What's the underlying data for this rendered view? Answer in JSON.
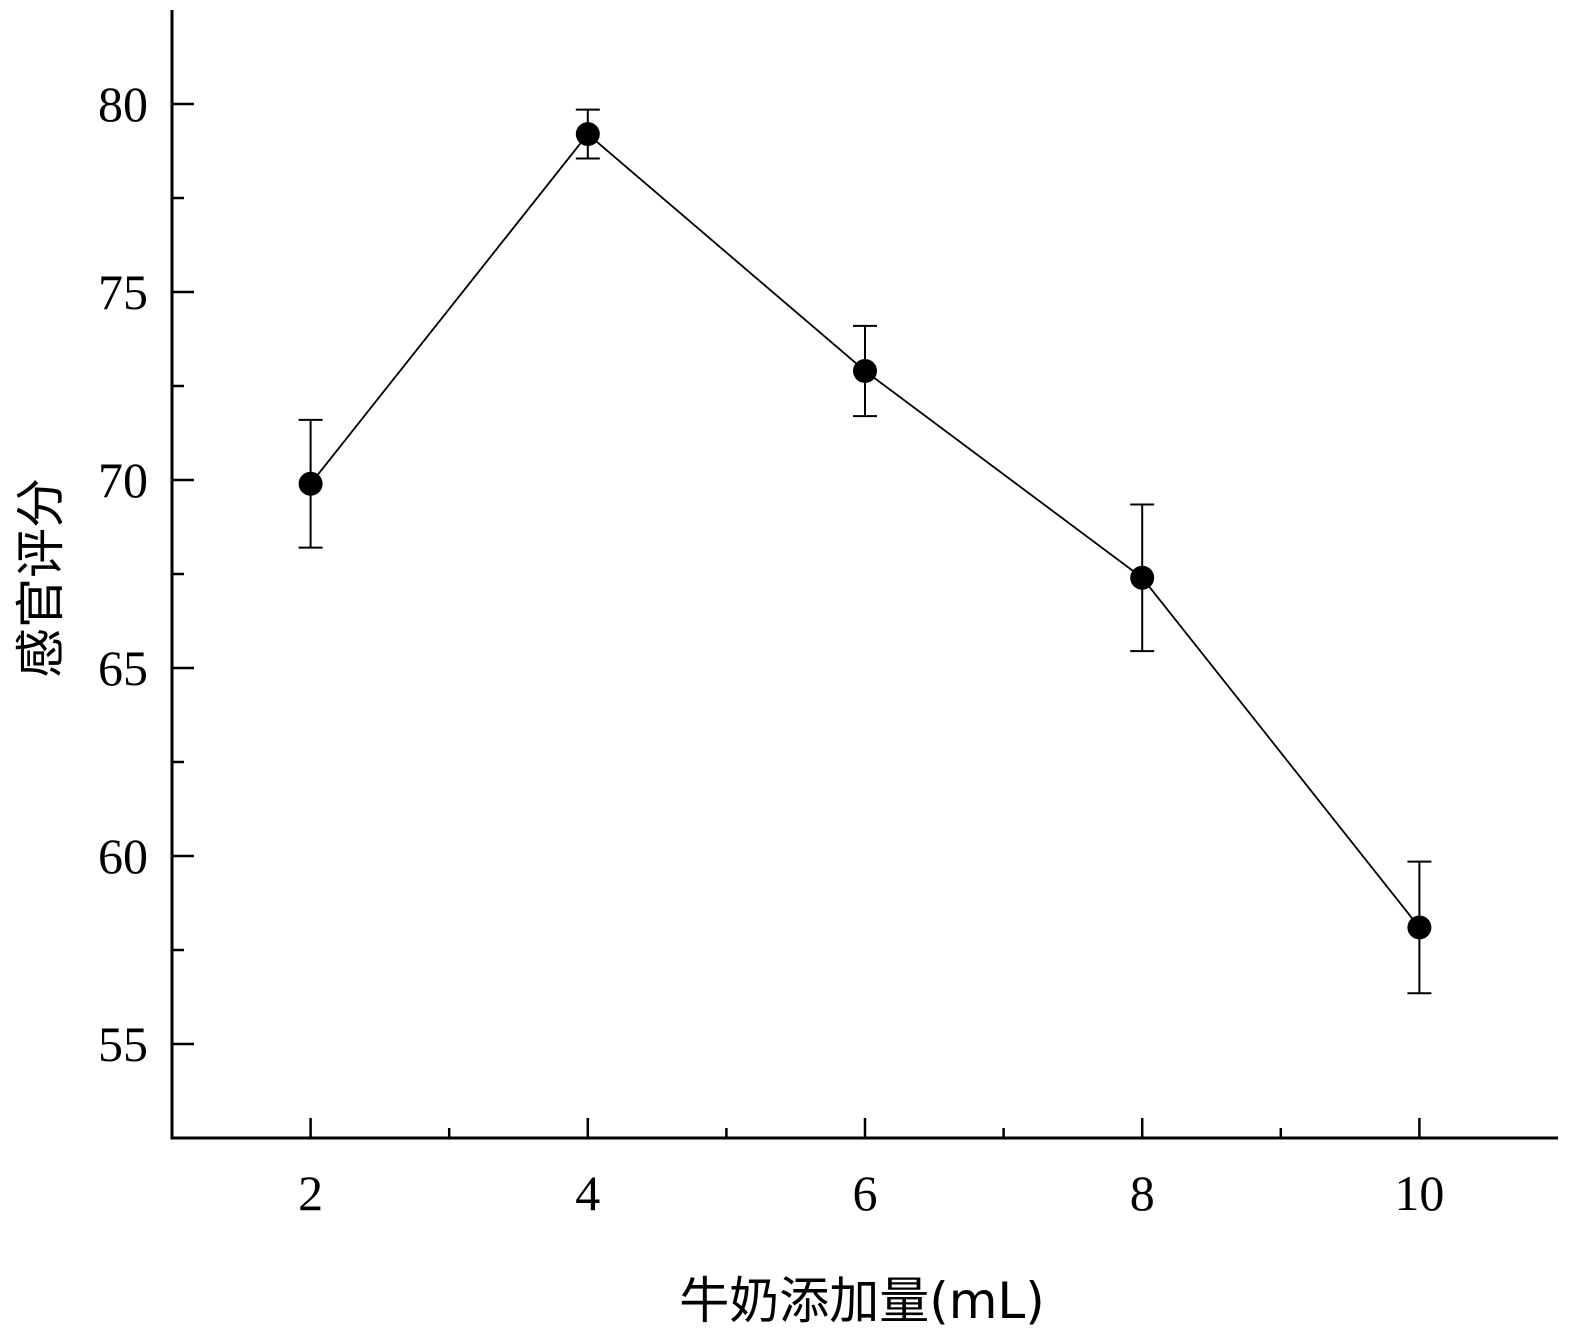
{
  "chart_data": {
    "type": "line",
    "title": "",
    "xlabel": "牛奶添加量(mL)",
    "ylabel": "感官评分",
    "x": [
      2,
      4,
      6,
      8,
      10
    ],
    "series": [
      {
        "values": [
          69.9,
          79.2,
          72.9,
          67.4,
          58.1
        ],
        "errors": [
          1.7,
          0.65,
          1.2,
          1.95,
          1.75
        ]
      }
    ],
    "xlim": [
      1,
      11
    ],
    "ylim": [
      52.5,
      82.5
    ],
    "xticks": [
      2,
      4,
      6,
      8,
      10
    ],
    "xminor": [
      3,
      5,
      7,
      9
    ],
    "yticks": [
      55,
      60,
      65,
      70,
      75,
      80
    ],
    "yminor": [
      57.5,
      62.5,
      67.5,
      72.5,
      77.5
    ],
    "grid": false,
    "legend": "none",
    "colors": {
      "line": "#000000",
      "marker": "#000000",
      "axis": "#000000"
    }
  }
}
